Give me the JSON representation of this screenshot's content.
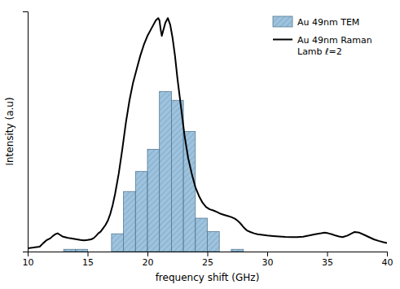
{
  "chart_data": {
    "type": "histogram",
    "xlabel": "frequency shift (GHz)",
    "ylabel": "Intensity (a.u)",
    "xlim": [
      10,
      40
    ],
    "ylim": [
      0,
      1.08
    ],
    "xticks": [
      10,
      15,
      20,
      25,
      30,
      35,
      40
    ],
    "yticks": [],
    "tick_labels": "x",
    "grid": false,
    "legend": "upper right",
    "series": [
      {
        "name": "Au 49nm TEM",
        "type": "histogram",
        "color": "#7bafd4",
        "x": [
          13,
          14,
          17,
          18,
          19,
          20,
          21,
          22,
          23,
          24,
          25,
          27
        ],
        "width": 1.0,
        "values": [
          0.01,
          0.01,
          0.08,
          0.27,
          0.36,
          0.46,
          0.72,
          0.68,
          0.54,
          0.15,
          0.09,
          0.01
        ]
      },
      {
        "name": "Au 49nm Raman\nLamb ℓ=2",
        "type": "line",
        "color": "#000000",
        "x": [
          10.0,
          10.5,
          11.0,
          11.3,
          11.6,
          11.9,
          12.1,
          12.3,
          12.5,
          12.7,
          12.9,
          13.1,
          13.3,
          13.5,
          13.8,
          14.1,
          14.4,
          14.7,
          15.0,
          15.3,
          15.5,
          15.7,
          15.9,
          16.1,
          16.3,
          16.5,
          16.7,
          16.9,
          17.1,
          17.3,
          17.6,
          17.9,
          18.2,
          18.5,
          18.8,
          19.1,
          19.4,
          19.7,
          20.0,
          20.3,
          20.5,
          20.7,
          20.9,
          21.0,
          21.1,
          21.2,
          21.3,
          21.5,
          21.7,
          21.9,
          22.1,
          22.3,
          22.5,
          22.8,
          23.1,
          23.4,
          23.7,
          24.0,
          24.3,
          24.6,
          24.9,
          25.2,
          25.5,
          25.8,
          26.1,
          26.4,
          26.7,
          27.0,
          27.3,
          27.5,
          27.7,
          27.9,
          28.1,
          28.3,
          28.6,
          28.9,
          29.2,
          29.6,
          30.0,
          30.5,
          31.0,
          31.5,
          32.0,
          32.5,
          33.0,
          33.5,
          34.0,
          34.5,
          34.8,
          35.1,
          35.4,
          35.7,
          36.0,
          36.3,
          36.7,
          37.0,
          37.3,
          37.7,
          38.1,
          38.5,
          38.9,
          39.3,
          39.7,
          40.0
        ],
        "values": [
          0.015,
          0.018,
          0.022,
          0.038,
          0.052,
          0.06,
          0.07,
          0.078,
          0.082,
          0.075,
          0.068,
          0.065,
          0.062,
          0.06,
          0.058,
          0.055,
          0.052,
          0.05,
          0.052,
          0.055,
          0.06,
          0.07,
          0.082,
          0.09,
          0.105,
          0.12,
          0.14,
          0.17,
          0.21,
          0.26,
          0.35,
          0.46,
          0.58,
          0.68,
          0.76,
          0.82,
          0.88,
          0.93,
          0.97,
          1.0,
          1.02,
          1.04,
          1.05,
          1.04,
          1.0,
          0.97,
          0.99,
          1.03,
          1.05,
          1.02,
          0.96,
          0.88,
          0.78,
          0.65,
          0.52,
          0.42,
          0.35,
          0.29,
          0.25,
          0.22,
          0.2,
          0.19,
          0.185,
          0.178,
          0.17,
          0.165,
          0.16,
          0.155,
          0.148,
          0.14,
          0.13,
          0.118,
          0.105,
          0.095,
          0.088,
          0.082,
          0.078,
          0.075,
          0.072,
          0.07,
          0.068,
          0.066,
          0.065,
          0.065,
          0.067,
          0.072,
          0.078,
          0.082,
          0.085,
          0.082,
          0.078,
          0.072,
          0.068,
          0.065,
          0.072,
          0.08,
          0.088,
          0.085,
          0.075,
          0.065,
          0.055,
          0.048,
          0.042,
          0.038
        ]
      }
    ]
  }
}
